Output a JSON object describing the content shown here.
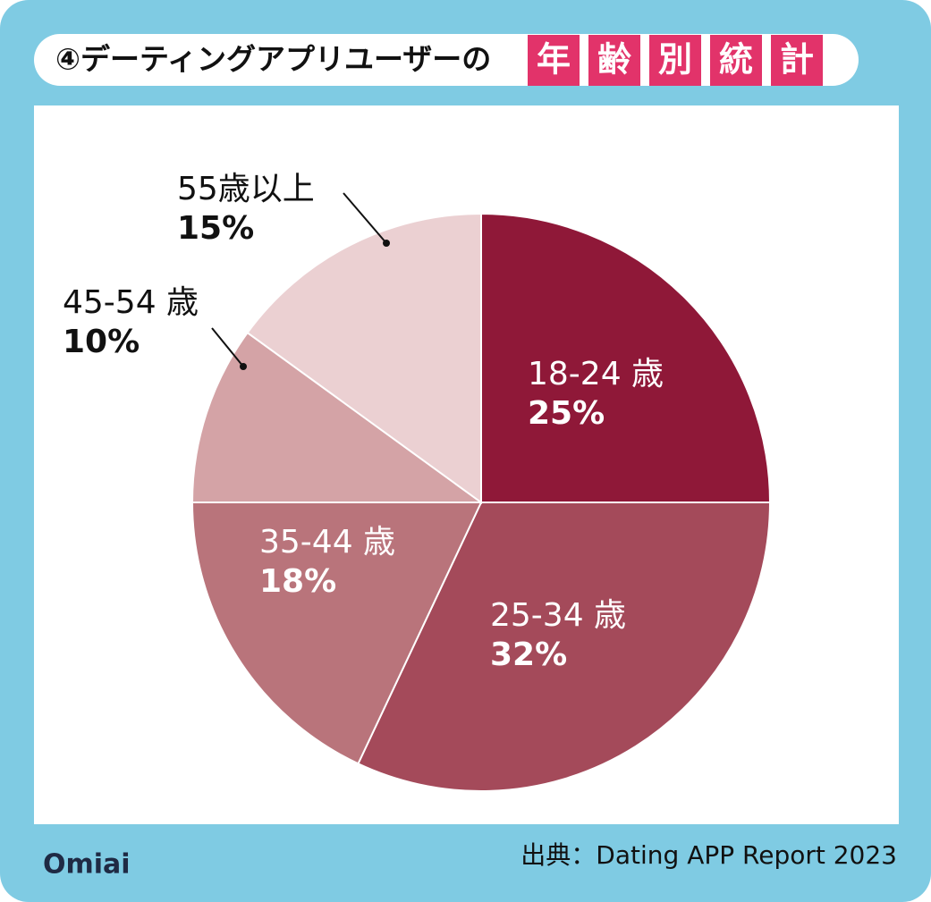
{
  "chart_data": {
    "type": "pie",
    "title": "④デーティングアプリユーザーの",
    "title_highlight": [
      "年",
      "齢",
      "別",
      "統",
      "計"
    ],
    "categories": [
      "18-24 歳",
      "25-34 歳",
      "35-44 歳",
      "45-54 歳",
      "55歳以上"
    ],
    "values": [
      25,
      32,
      18,
      10,
      15
    ],
    "value_labels": [
      "25%",
      "32%",
      "18%",
      "10%",
      "15%"
    ],
    "colors": [
      "#8f1838",
      "#a44a5a",
      "#b9747b",
      "#d4a3a6",
      "#ebd0d2"
    ],
    "source": "出典：Dating APP Report 2023",
    "logo": "Omiai"
  }
}
